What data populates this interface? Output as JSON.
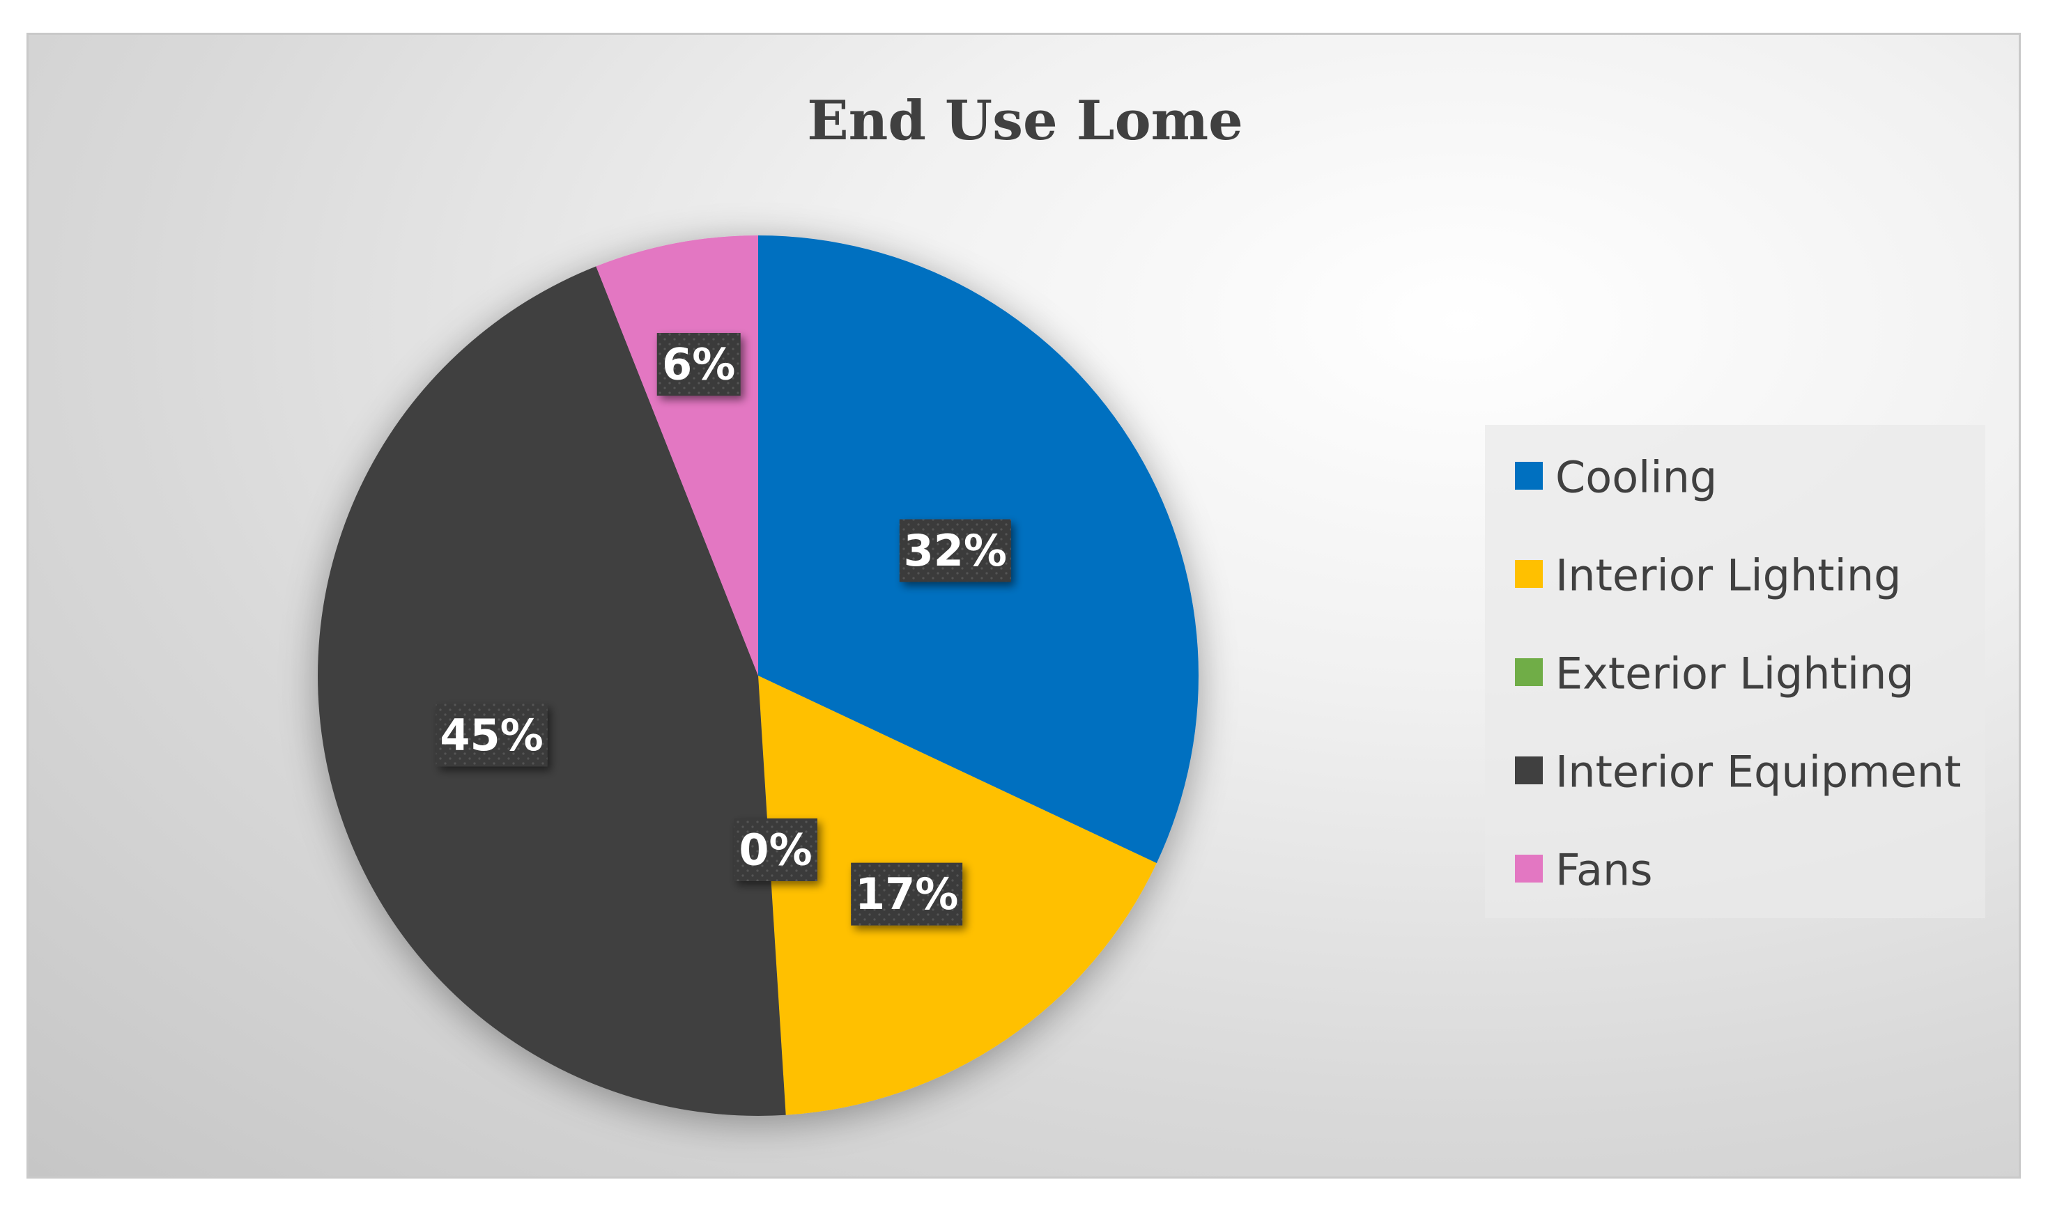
{
  "chart_data": {
    "type": "pie",
    "title": "End Use Lome",
    "categories": [
      "Cooling",
      "Interior Lighting",
      "Exterior Lighting",
      "Interior Equipment",
      "Fans"
    ],
    "values": [
      32,
      17,
      0,
      45,
      6
    ],
    "data_labels": [
      "32%",
      "17%",
      "0%",
      "45%",
      "6%"
    ],
    "colors": [
      "#0070C0",
      "#FFC000",
      "#70AD47",
      "#404040",
      "#E377C2"
    ],
    "start_angle_deg": 0,
    "direction": "clockwise",
    "legend": {
      "position": "right",
      "entries": [
        "Cooling",
        "Interior Lighting",
        "Exterior Lighting",
        "Interior Equipment",
        "Fans"
      ]
    }
  }
}
